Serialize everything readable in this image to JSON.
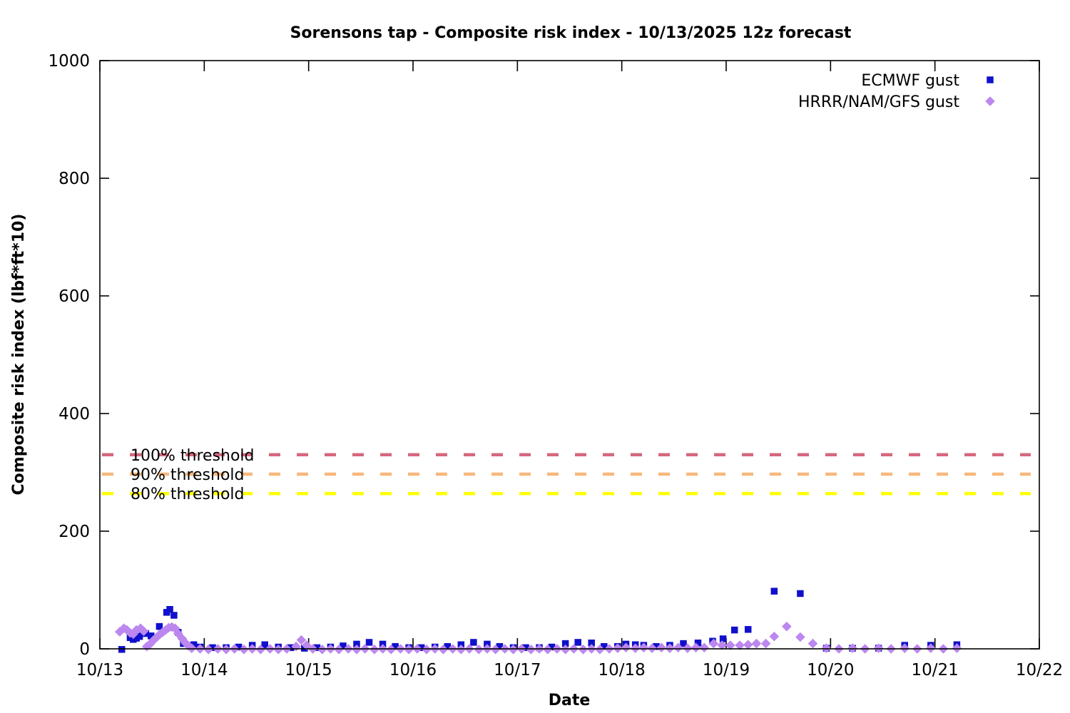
{
  "chart_data": {
    "type": "scatter",
    "title": "Sorensons tap - Composite risk index - 10/13/2025 12z forecast",
    "xlabel": "Date",
    "ylabel": "Composite risk index (lbf*ft*10)",
    "x_unit": "days since 10/13 00:00",
    "xlim": [
      0,
      9
    ],
    "ylim": [
      0,
      1000
    ],
    "grid": false,
    "legend_position": "top-right-inside",
    "background_color": "#ffffff",
    "axis_color": "#000000",
    "x_ticks": [
      {
        "v": 0,
        "label": "10/13"
      },
      {
        "v": 1,
        "label": "10/14"
      },
      {
        "v": 2,
        "label": "10/15"
      },
      {
        "v": 3,
        "label": "10/16"
      },
      {
        "v": 4,
        "label": "10/17"
      },
      {
        "v": 5,
        "label": "10/18"
      },
      {
        "v": 6,
        "label": "10/19"
      },
      {
        "v": 7,
        "label": "10/20"
      },
      {
        "v": 8,
        "label": "10/21"
      },
      {
        "v": 9,
        "label": "10/22"
      }
    ],
    "y_ticks": [
      {
        "v": 0,
        "label": "0"
      },
      {
        "v": 200,
        "label": "200"
      },
      {
        "v": 400,
        "label": "400"
      },
      {
        "v": 600,
        "label": "600"
      },
      {
        "v": 800,
        "label": "800"
      },
      {
        "v": 1000,
        "label": "1000"
      }
    ],
    "thresholds": [
      {
        "label": "100% threshold",
        "value": 330,
        "color": "#D4687F"
      },
      {
        "label": "90% threshold",
        "value": 297,
        "color": "#F7B87C"
      },
      {
        "label": "80% threshold",
        "value": 264,
        "color": "#FFFF00"
      }
    ],
    "series": [
      {
        "name": "ECMWF gust",
        "marker": "square",
        "color": "#1010CC",
        "points": [
          [
            0.21,
            -1
          ],
          [
            0.29,
            19
          ],
          [
            0.32,
            16
          ],
          [
            0.35,
            18
          ],
          [
            0.38,
            21
          ],
          [
            0.41,
            28
          ],
          [
            0.44,
            26
          ],
          [
            0.49,
            22
          ],
          [
            0.57,
            38
          ],
          [
            0.64,
            62
          ],
          [
            0.67,
            67
          ],
          [
            0.71,
            57
          ],
          [
            0.75,
            28
          ],
          [
            0.8,
            9
          ],
          [
            0.86,
            5
          ],
          [
            0.9,
            7
          ],
          [
            0.96,
            3
          ],
          [
            1.08,
            2
          ],
          [
            1.21,
            2
          ],
          [
            1.33,
            3
          ],
          [
            1.46,
            6
          ],
          [
            1.58,
            7
          ],
          [
            1.71,
            3
          ],
          [
            1.83,
            2
          ],
          [
            1.96,
            1
          ],
          [
            2.08,
            2
          ],
          [
            2.21,
            3
          ],
          [
            2.33,
            5
          ],
          [
            2.46,
            8
          ],
          [
            2.58,
            11
          ],
          [
            2.71,
            8
          ],
          [
            2.83,
            4
          ],
          [
            2.96,
            2
          ],
          [
            3.08,
            2
          ],
          [
            3.21,
            3
          ],
          [
            3.33,
            4
          ],
          [
            3.46,
            7
          ],
          [
            3.58,
            11
          ],
          [
            3.71,
            8
          ],
          [
            3.83,
            4
          ],
          [
            3.96,
            2
          ],
          [
            4.08,
            2
          ],
          [
            4.21,
            2
          ],
          [
            4.33,
            3
          ],
          [
            4.46,
            9
          ],
          [
            4.58,
            11
          ],
          [
            4.71,
            10
          ],
          [
            4.83,
            4
          ],
          [
            4.96,
            4
          ],
          [
            5.04,
            8
          ],
          [
            5.13,
            7
          ],
          [
            5.21,
            6
          ],
          [
            5.33,
            4
          ],
          [
            5.46,
            6
          ],
          [
            5.59,
            9
          ],
          [
            5.73,
            10
          ],
          [
            5.87,
            13
          ],
          [
            5.97,
            17
          ],
          [
            6.08,
            32
          ],
          [
            6.21,
            33
          ],
          [
            6.46,
            98
          ],
          [
            6.71,
            94
          ],
          [
            6.96,
            1
          ],
          [
            7.21,
            1
          ],
          [
            7.46,
            1
          ],
          [
            7.71,
            6
          ],
          [
            7.96,
            6
          ],
          [
            8.21,
            7
          ]
        ]
      },
      {
        "name": "HRRR/NAM/GFS gust",
        "marker": "diamond",
        "color": "#BC87EF",
        "points": [
          [
            0.19,
            29
          ],
          [
            0.23,
            35
          ],
          [
            0.26,
            32
          ],
          [
            0.29,
            27
          ],
          [
            0.32,
            25
          ],
          [
            0.35,
            32
          ],
          [
            0.39,
            35
          ],
          [
            0.42,
            30
          ],
          [
            0.45,
            4
          ],
          [
            0.48,
            8
          ],
          [
            0.51,
            14
          ],
          [
            0.54,
            19
          ],
          [
            0.57,
            24
          ],
          [
            0.6,
            28
          ],
          [
            0.63,
            32
          ],
          [
            0.66,
            36
          ],
          [
            0.69,
            37
          ],
          [
            0.72,
            35
          ],
          [
            0.75,
            26
          ],
          [
            0.79,
            17
          ],
          [
            0.82,
            10
          ],
          [
            0.85,
            5
          ],
          [
            0.88,
            1
          ],
          [
            0.96,
            0
          ],
          [
            1.04,
            -1
          ],
          [
            1.13,
            0
          ],
          [
            1.21,
            -1
          ],
          [
            1.29,
            0
          ],
          [
            1.38,
            -1
          ],
          [
            1.46,
            0
          ],
          [
            1.54,
            -1
          ],
          [
            1.63,
            0
          ],
          [
            1.71,
            -1
          ],
          [
            1.79,
            0
          ],
          [
            1.88,
            4
          ],
          [
            1.93,
            15
          ],
          [
            1.98,
            6
          ],
          [
            2.04,
            0
          ],
          [
            2.13,
            -1
          ],
          [
            2.21,
            0
          ],
          [
            2.29,
            -1
          ],
          [
            2.38,
            0
          ],
          [
            2.46,
            -1
          ],
          [
            2.54,
            0
          ],
          [
            2.63,
            -1
          ],
          [
            2.71,
            0
          ],
          [
            2.79,
            -1
          ],
          [
            2.88,
            0
          ],
          [
            2.96,
            -1
          ],
          [
            3.04,
            0
          ],
          [
            3.13,
            -1
          ],
          [
            3.21,
            0
          ],
          [
            3.29,
            -1
          ],
          [
            3.38,
            0
          ],
          [
            3.46,
            -1
          ],
          [
            3.54,
            0
          ],
          [
            3.63,
            -1
          ],
          [
            3.71,
            0
          ],
          [
            3.79,
            -1
          ],
          [
            3.88,
            0
          ],
          [
            3.96,
            -1
          ],
          [
            4.04,
            0
          ],
          [
            4.13,
            -1
          ],
          [
            4.21,
            0
          ],
          [
            4.29,
            -1
          ],
          [
            4.38,
            0
          ],
          [
            4.46,
            -1
          ],
          [
            4.54,
            0
          ],
          [
            4.63,
            -1
          ],
          [
            4.71,
            0
          ],
          [
            4.79,
            -1
          ],
          [
            4.88,
            0
          ],
          [
            4.96,
            1
          ],
          [
            5.04,
            2
          ],
          [
            5.13,
            1
          ],
          [
            5.21,
            2
          ],
          [
            5.29,
            1
          ],
          [
            5.38,
            2
          ],
          [
            5.46,
            1
          ],
          [
            5.54,
            2
          ],
          [
            5.63,
            1
          ],
          [
            5.71,
            2
          ],
          [
            5.79,
            2
          ],
          [
            5.88,
            9
          ],
          [
            5.96,
            6
          ],
          [
            6.04,
            6
          ],
          [
            6.13,
            6
          ],
          [
            6.21,
            7
          ],
          [
            6.29,
            9
          ],
          [
            6.38,
            9
          ],
          [
            6.46,
            21
          ],
          [
            6.58,
            38
          ],
          [
            6.71,
            20
          ],
          [
            6.83,
            9
          ],
          [
            6.96,
            1
          ],
          [
            7.08,
            0
          ],
          [
            7.21,
            1
          ],
          [
            7.33,
            0
          ],
          [
            7.46,
            1
          ],
          [
            7.58,
            0
          ],
          [
            7.71,
            1
          ],
          [
            7.83,
            0
          ],
          [
            7.96,
            1
          ],
          [
            8.08,
            0
          ],
          [
            8.21,
            1
          ]
        ]
      }
    ]
  }
}
